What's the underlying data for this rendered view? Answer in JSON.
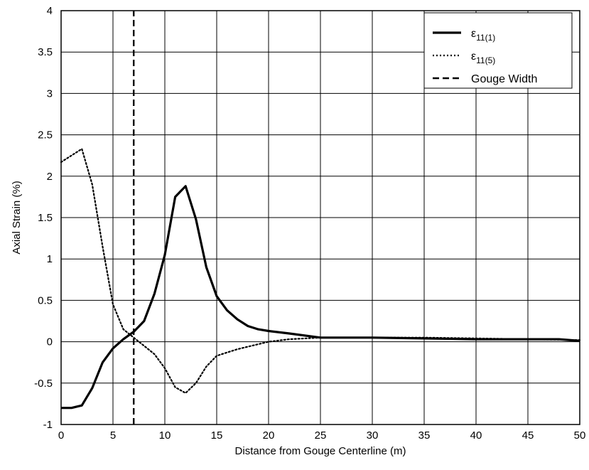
{
  "chart_data": {
    "type": "line",
    "xlabel": "Distance from Gouge Centerline (m)",
    "ylabel": "Axial Strain (%)",
    "xlim": [
      0,
      50
    ],
    "ylim": [
      -1,
      4
    ],
    "x_ticks": [
      0,
      5,
      10,
      15,
      20,
      25,
      30,
      35,
      40,
      45,
      50
    ],
    "y_ticks": [
      -1,
      -0.5,
      0,
      0.5,
      1,
      1.5,
      2,
      2.5,
      3,
      3.5,
      4
    ],
    "x_tick_labels": [
      "0",
      "5",
      "10",
      "15",
      "20",
      "25",
      "30",
      "35",
      "40",
      "45",
      "50"
    ],
    "y_tick_labels": [
      "-1",
      "-0.5",
      "0",
      "0.5",
      "1",
      "1.5",
      "2",
      "2.5",
      "3",
      "3.5",
      "4"
    ],
    "grid": true,
    "legend_position": "top-right",
    "series": [
      {
        "name": "ε11(1)",
        "name_main": "ε",
        "name_sub": "11(1)",
        "style": "solid",
        "color": "#000000",
        "points": [
          [
            0,
            -0.8
          ],
          [
            1,
            -0.8
          ],
          [
            2,
            -0.77
          ],
          [
            3,
            -0.56
          ],
          [
            4,
            -0.25
          ],
          [
            5,
            -0.08
          ],
          [
            6,
            0.03
          ],
          [
            7,
            0.12
          ],
          [
            8,
            0.25
          ],
          [
            9,
            0.58
          ],
          [
            10,
            1.05
          ],
          [
            11,
            1.75
          ],
          [
            12,
            1.88
          ],
          [
            13,
            1.48
          ],
          [
            14,
            0.9
          ],
          [
            15,
            0.55
          ],
          [
            16,
            0.38
          ],
          [
            17,
            0.27
          ],
          [
            18,
            0.19
          ],
          [
            19,
            0.15
          ],
          [
            20,
            0.13
          ],
          [
            22,
            0.1
          ],
          [
            25,
            0.05
          ],
          [
            30,
            0.05
          ],
          [
            35,
            0.04
          ],
          [
            40,
            0.03
          ],
          [
            45,
            0.03
          ],
          [
            48,
            0.03
          ],
          [
            50,
            0.01
          ]
        ]
      },
      {
        "name": "ε11(5)",
        "name_main": "ε",
        "name_sub": "11(5)",
        "style": "dotted",
        "color": "#000000",
        "points": [
          [
            0,
            2.17
          ],
          [
            1,
            2.25
          ],
          [
            2,
            2.33
          ],
          [
            3,
            1.9
          ],
          [
            4,
            1.15
          ],
          [
            5,
            0.45
          ],
          [
            6,
            0.15
          ],
          [
            7,
            0.05
          ],
          [
            8,
            -0.05
          ],
          [
            9,
            -0.15
          ],
          [
            10,
            -0.32
          ],
          [
            11,
            -0.55
          ],
          [
            12,
            -0.62
          ],
          [
            13,
            -0.5
          ],
          [
            14,
            -0.3
          ],
          [
            15,
            -0.17
          ],
          [
            16,
            -0.13
          ],
          [
            17,
            -0.09
          ],
          [
            18,
            -0.06
          ],
          [
            19,
            -0.03
          ],
          [
            20,
            0.0
          ],
          [
            22,
            0.03
          ],
          [
            25,
            0.05
          ],
          [
            30,
            0.05
          ],
          [
            35,
            0.05
          ],
          [
            40,
            0.04
          ],
          [
            45,
            0.03
          ],
          [
            50,
            0.02
          ]
        ]
      },
      {
        "name": "Gouge Width",
        "style": "dashed",
        "color": "#000000",
        "points": [
          [
            7,
            -1
          ],
          [
            7,
            4
          ]
        ]
      }
    ]
  }
}
